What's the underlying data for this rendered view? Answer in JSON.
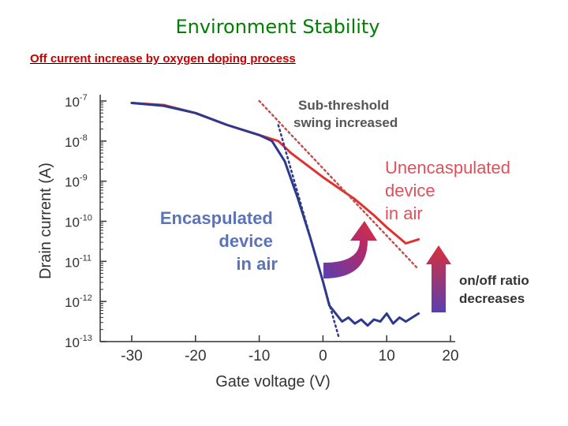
{
  "slide": {
    "title": "Environment Stability",
    "subtitle": "Off current increase by oxygen doping process"
  },
  "chart_data": {
    "type": "line",
    "xlabel": "Gate voltage (V)",
    "ylabel": "Drain current (A)",
    "xlim": [
      -35,
      20
    ],
    "ylim_log10": [
      -13,
      -7
    ],
    "yscale": "log",
    "x_ticks": [
      -30,
      -20,
      -10,
      0,
      10,
      20
    ],
    "y_ticks": [
      {
        "base": "10",
        "exp": "-7"
      },
      {
        "base": "10",
        "exp": "-8"
      },
      {
        "base": "10",
        "exp": "-9"
      },
      {
        "base": "10",
        "exp": "-10"
      },
      {
        "base": "10",
        "exp": "-11"
      },
      {
        "base": "10",
        "exp": "-12"
      },
      {
        "base": "10",
        "exp": "-13"
      }
    ],
    "series": [
      {
        "color": "#e03030",
        "style": "solid",
        "points": [
          [
            -30,
            -7.05
          ],
          [
            -25,
            -7.1
          ],
          [
            -20,
            -7.3
          ],
          [
            -15,
            -7.6
          ],
          [
            -10,
            -7.85
          ],
          [
            -7,
            -8.0
          ],
          [
            -5,
            -8.3
          ],
          [
            0,
            -8.9
          ],
          [
            5,
            -9.45
          ],
          [
            8,
            -9.85
          ],
          [
            10,
            -10.15
          ],
          [
            13,
            -10.55
          ],
          [
            15,
            -10.45
          ]
        ]
      },
      {
        "color": "#2d3a8c",
        "style": "solid",
        "points": [
          [
            -30,
            -7.05
          ],
          [
            -25,
            -7.12
          ],
          [
            -20,
            -7.3
          ],
          [
            -15,
            -7.6
          ],
          [
            -10,
            -7.85
          ],
          [
            -8,
            -8.0
          ],
          [
            -6,
            -8.5
          ],
          [
            -4,
            -9.4
          ],
          [
            -2,
            -10.4
          ],
          [
            0,
            -11.5
          ],
          [
            1,
            -12.1
          ],
          [
            2,
            -12.3
          ],
          [
            3,
            -12.5
          ],
          [
            4,
            -12.4
          ],
          [
            5,
            -12.55
          ],
          [
            6,
            -12.45
          ],
          [
            7,
            -12.6
          ],
          [
            8,
            -12.45
          ],
          [
            9,
            -12.5
          ],
          [
            10,
            -12.3
          ],
          [
            11,
            -12.55
          ],
          [
            12,
            -12.4
          ],
          [
            13,
            -12.5
          ],
          [
            15,
            -12.3
          ]
        ]
      },
      {
        "color": "#c0504d",
        "style": "dotted",
        "points": [
          [
            -10,
            -7.0
          ],
          [
            15,
            -11.2
          ]
        ]
      },
      {
        "color": "#2d3a8c",
        "style": "dotted",
        "points": [
          [
            -7,
            -7.6
          ],
          [
            2.5,
            -12.9
          ]
        ]
      }
    ],
    "annotations": [
      {
        "lines": [
          "Sub-threshold",
          "swing increased"
        ],
        "color": "#555555"
      },
      {
        "lines": [
          "Encaspulated",
          "device",
          "in air"
        ],
        "color": "#5b73b9"
      },
      {
        "lines": [
          "Unencaspulated",
          "device",
          "in air"
        ],
        "color": "#e0505a"
      },
      {
        "lines": [
          "on/off ratio",
          "decreases"
        ],
        "color": "#333333"
      }
    ],
    "grid": false,
    "legend": "none"
  }
}
